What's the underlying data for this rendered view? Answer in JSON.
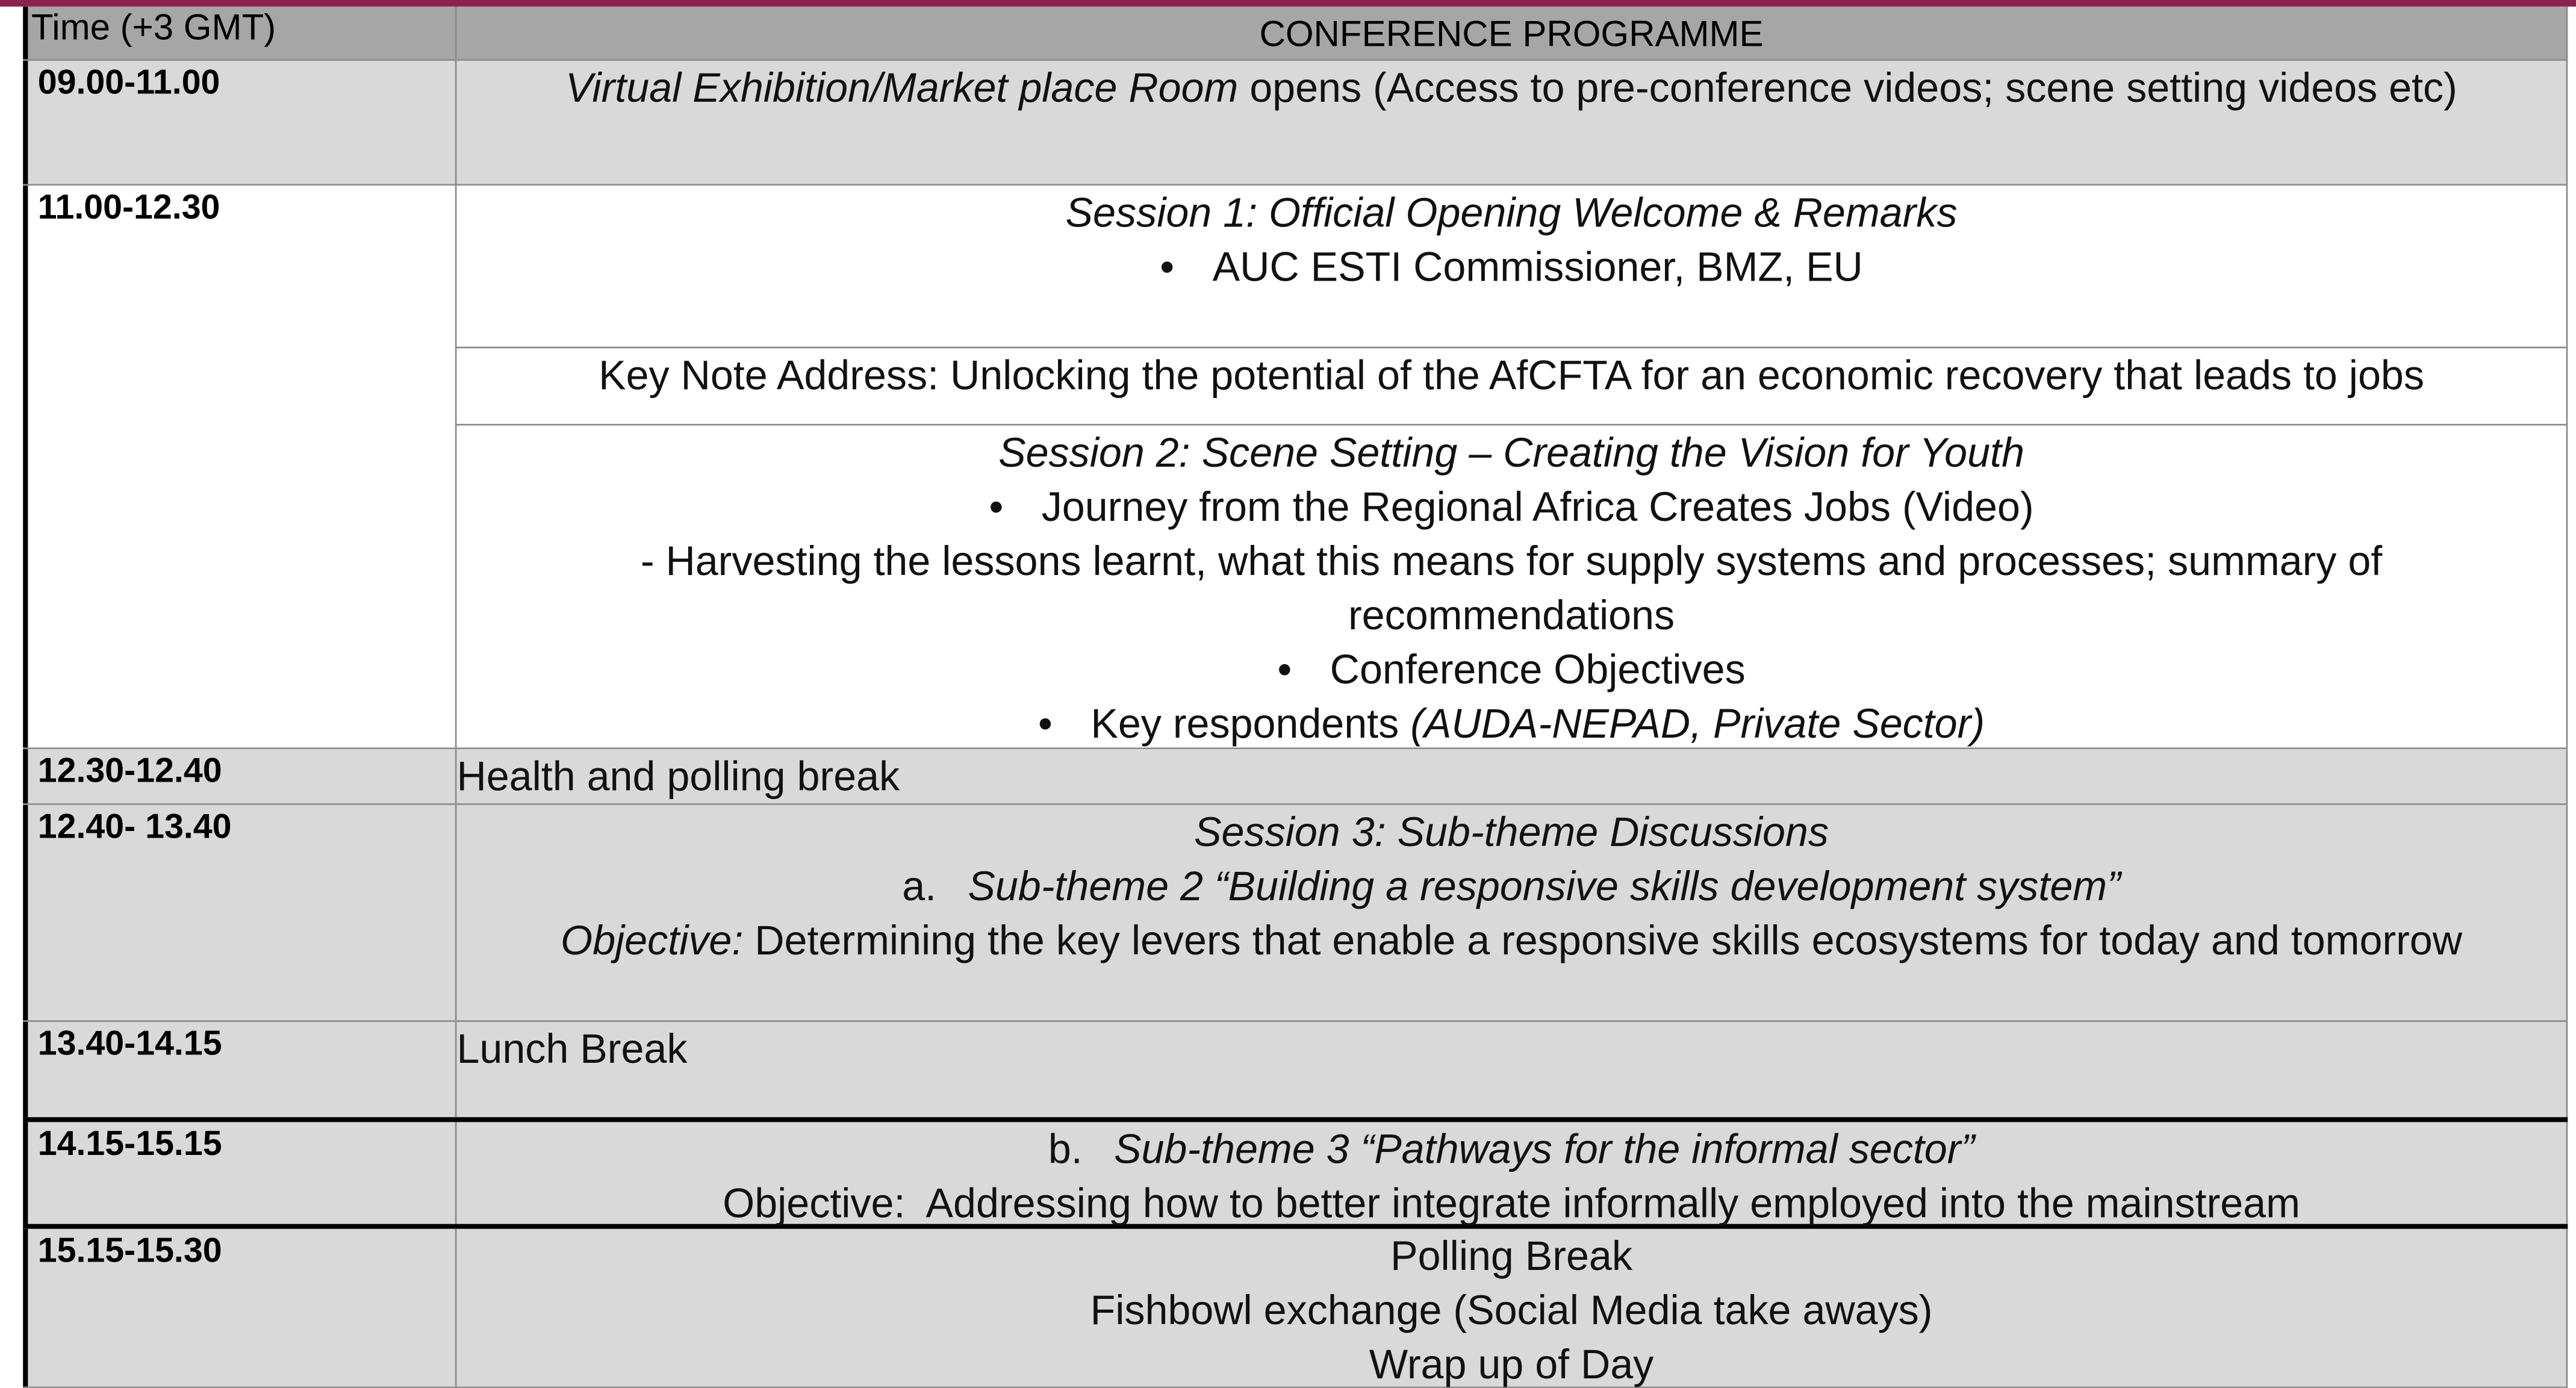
{
  "header": {
    "time": "Time (+3 GMT)",
    "title": "CONFERENCE PROGRAMME"
  },
  "rows": [
    {
      "time": "09.00-11.00",
      "cells": [
        {
          "lines": [
            {
              "segments": [
                {
                  "text": "Virtual Exhibition/Market place Room",
                  "italic": true
                },
                {
                  "text": " opens (Access to pre-conference videos; scene setting videos etc)"
                }
              ]
            }
          ]
        }
      ]
    },
    {
      "time": "11.00-12.30",
      "cells": [
        {
          "lines": [
            {
              "segments": [
                {
                  "text": "Session 1: Official Opening Welcome & Remarks",
                  "italic": true
                }
              ]
            },
            {
              "bullet": true,
              "segments": [
                {
                  "text": "AUC ESTI Commissioner, BMZ, EU"
                }
              ]
            }
          ]
        },
        {
          "lines": [
            {
              "segments": [
                {
                  "text": "Key Note Address: Unlocking the potential of the AfCFTA for an economic recovery that leads to jobs"
                }
              ]
            }
          ]
        },
        {
          "lines": [
            {
              "segments": [
                {
                  "text": "Session 2: Scene Setting – Creating the Vision for Youth",
                  "italic": true
                }
              ]
            },
            {
              "bullet": true,
              "segments": [
                {
                  "text": "Journey from the Regional Africa Creates Jobs (Video)"
                }
              ]
            },
            {
              "segments": [
                {
                  "text": "- Harvesting the lessons learnt, what this means for supply systems and processes; summary of recommendations"
                }
              ]
            },
            {
              "bullet": true,
              "segments": [
                {
                  "text": "Conference Objectives"
                }
              ]
            },
            {
              "bullet": true,
              "segments": [
                {
                  "text": "Key respondents "
                },
                {
                  "text": "(AUDA-NEPAD, Private Sector)",
                  "italic": true
                }
              ]
            }
          ]
        }
      ]
    },
    {
      "time": "12.30-12.40",
      "cells": [
        {
          "lines": [
            {
              "align": "left",
              "segments": [
                {
                  "text": "Health and polling break"
                }
              ]
            }
          ]
        }
      ]
    },
    {
      "time": "12.40- 13.40",
      "cells": [
        {
          "lines": [
            {
              "segments": [
                {
                  "text": "Session 3: Sub-theme Discussions",
                  "italic": true
                }
              ]
            },
            {
              "marker": "a.",
              "segments": [
                {
                  "text": "Sub-theme 2 “Building a responsive skills development system”",
                  "italic": true
                }
              ]
            },
            {
              "segments": [
                {
                  "text": "Objective:",
                  "italic": true
                },
                {
                  "text": " Determining the key levers that enable a responsive skills ecosystems for today and tomorrow"
                }
              ]
            }
          ]
        }
      ]
    },
    {
      "time": "13.40-14.15",
      "cells": [
        {
          "lines": [
            {
              "align": "left",
              "segments": [
                {
                  "text": "Lunch Break"
                }
              ]
            }
          ]
        }
      ]
    },
    {
      "time": "14.15-15.15",
      "cells": [
        {
          "lines": [
            {
              "marker": "b.",
              "segments": [
                {
                  "text": "Sub-theme 3 “Pathways for the informal sector”",
                  "italic": true
                }
              ]
            },
            {
              "segments": [
                {
                  "text": "Objective:  Addressing how to better integrate informally employed into the mainstream"
                }
              ]
            }
          ]
        }
      ]
    },
    {
      "time": "15.15-15.30",
      "cells": [
        {
          "lines": [
            {
              "segments": [
                {
                  "text": "Polling Break"
                }
              ]
            },
            {
              "segments": [
                {
                  "text": "Fishbowl exchange (Social Media take aways)"
                }
              ]
            },
            {
              "segments": [
                {
                  "text": "Wrap up of Day"
                }
              ]
            }
          ]
        }
      ]
    }
  ]
}
